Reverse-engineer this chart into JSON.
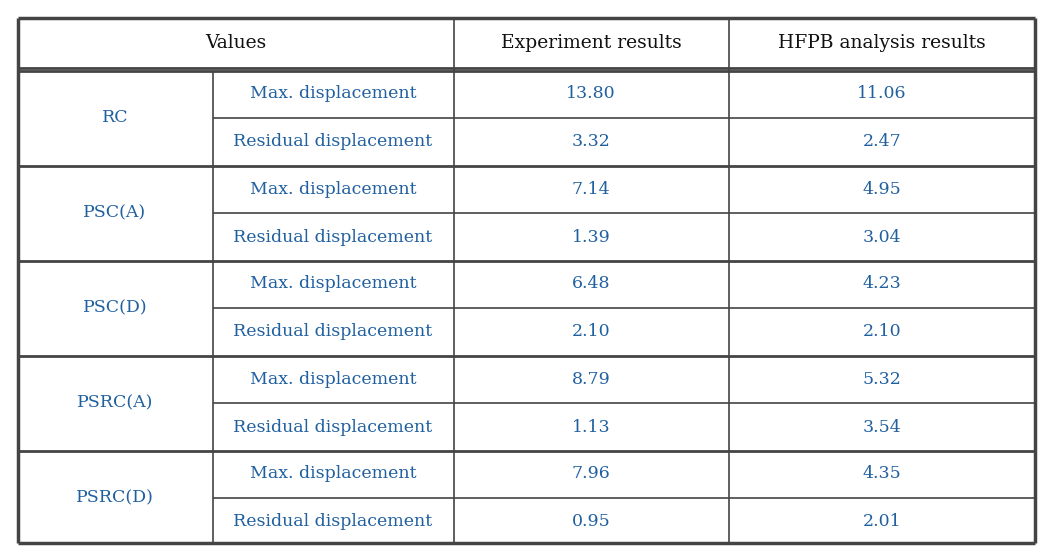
{
  "col1_header": "Values",
  "col3_header": "Experiment results",
  "col4_header": "HFPB analysis results",
  "groups": [
    {
      "label": "RC",
      "rows": [
        {
          "type": "Max. displacement",
          "exp": "13.80",
          "hfpb": "11.06"
        },
        {
          "type": "Residual displacement",
          "exp": "3.32",
          "hfpb": "2.47"
        }
      ]
    },
    {
      "label": "PSC(A)",
      "rows": [
        {
          "type": "Max. displacement",
          "exp": "7.14",
          "hfpb": "4.95"
        },
        {
          "type": "Residual displacement",
          "exp": "1.39",
          "hfpb": "3.04"
        }
      ]
    },
    {
      "label": "PSC(D)",
      "rows": [
        {
          "type": "Max. displacement",
          "exp": "6.48",
          "hfpb": "4.23"
        },
        {
          "type": "Residual displacement",
          "exp": "2.10",
          "hfpb": "2.10"
        }
      ]
    },
    {
      "label": "PSRC(A)",
      "rows": [
        {
          "type": "Max. displacement",
          "exp": "8.79",
          "hfpb": "5.32"
        },
        {
          "type": "Residual displacement",
          "exp": "1.13",
          "hfpb": "3.54"
        }
      ]
    },
    {
      "label": "PSRC(D)",
      "rows": [
        {
          "type": "Max. displacement",
          "exp": "7.96",
          "hfpb": "4.35"
        },
        {
          "type": "Residual displacement",
          "exp": "0.95",
          "hfpb": "2.01"
        }
      ]
    }
  ],
  "text_color_blue": "#2060a0",
  "text_color_black": "#111111",
  "border_color": "#444444",
  "bg_color": "#ffffff",
  "font_size_header": 13.5,
  "font_size_data": 12.5
}
